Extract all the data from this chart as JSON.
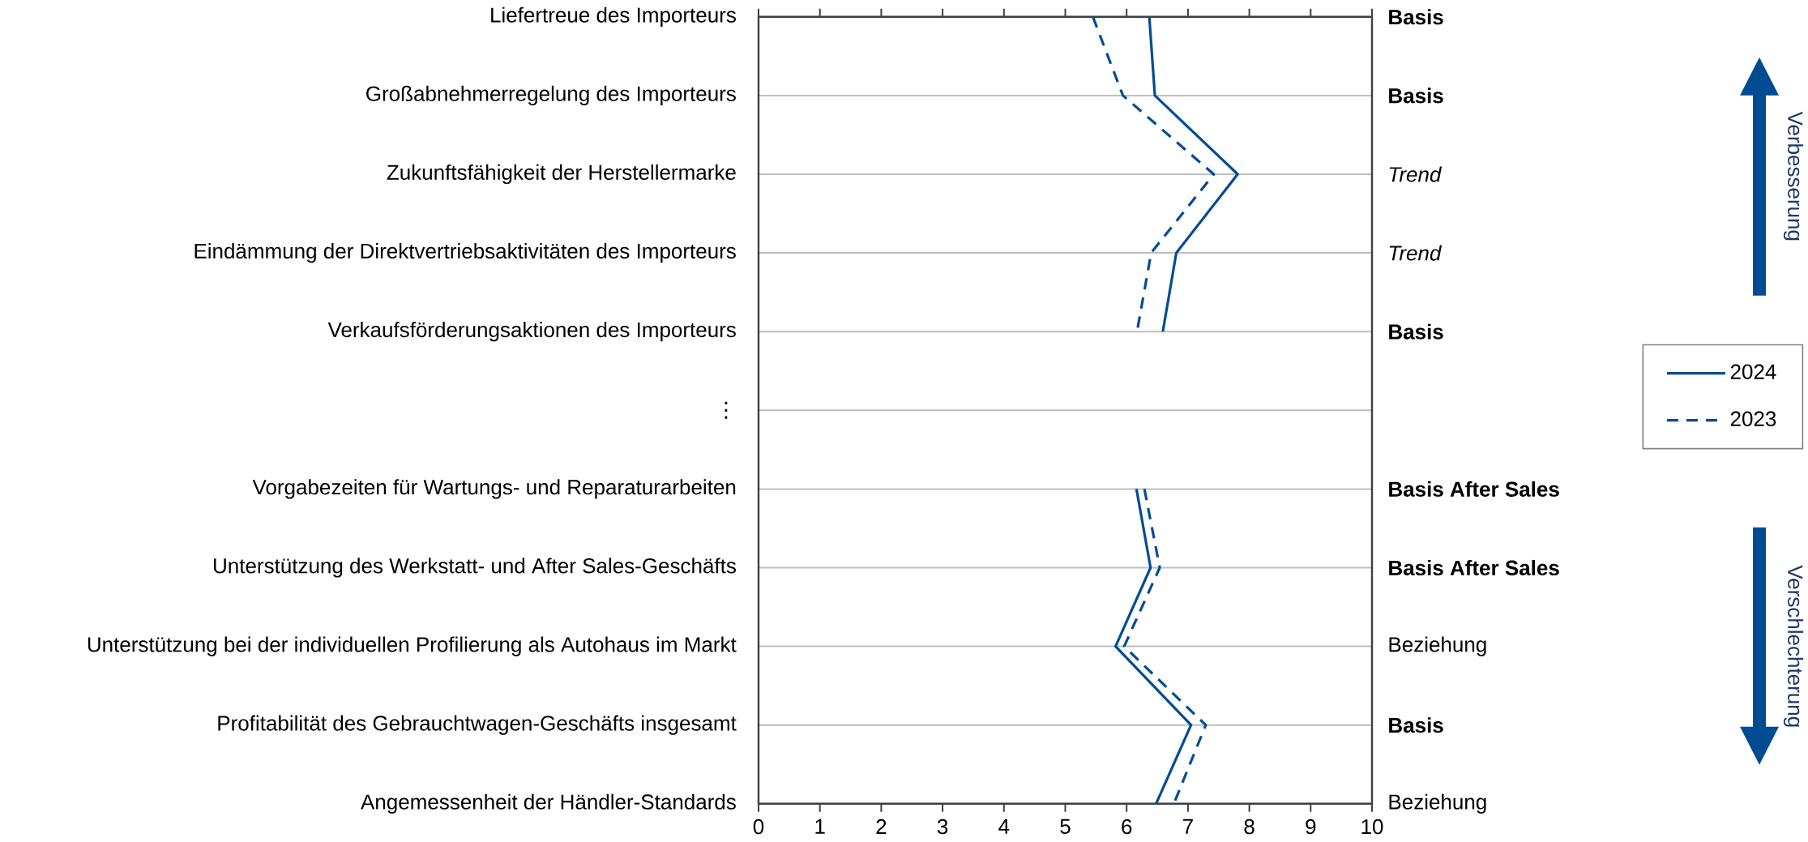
{
  "chart_data": {
    "type": "line",
    "orientation": "horizontal",
    "categories": [
      "Liefertreue des Importeurs",
      "Großabnehmerregelung des Importeurs",
      "Zukunftsfähigkeit der Herstellermarke",
      "Eindämmung der Direktvertriebsaktivitäten des Importeurs",
      "Verkaufsförderungsaktionen des Importeurs",
      "⋮",
      "Vorgabezeiten für Wartungs- und Reparaturarbeiten",
      "Unterstützung des Werkstatt- und After Sales-Geschäfts",
      "Unterstützung bei der individuellen Profilierung als Autohaus im Markt",
      "Profitabilität des Gebrauchtwagen-Geschäfts insgesamt",
      "Angemessenheit der Händler-Standards"
    ],
    "y2_categories": [
      "**Basis**",
      "**Basis**",
      "*Trend*",
      "*Trend*",
      "**Basis**",
      null,
      "**Basis After Sales**",
      "**Basis After Sales**",
      "Beziehung",
      "**Basis**",
      "Beziehung"
    ],
    "series": [
      {
        "name": "2024",
        "color": "#004c93",
        "line_style": "solid",
        "values": [
          6.37,
          6.46,
          7.81,
          6.81,
          6.59,
          null,
          6.16,
          6.39,
          5.82,
          7.05,
          6.48
        ]
      },
      {
        "name": "2023",
        "color": "#004c93",
        "line_style": "dashed",
        "values": [
          5.45,
          5.94,
          7.42,
          6.4,
          6.17,
          null,
          6.29,
          6.54,
          5.96,
          7.29,
          6.77
        ]
      }
    ],
    "xlim": [
      0,
      10
    ],
    "xticks": [
      0,
      1,
      2,
      3,
      4,
      5,
      6,
      7,
      8,
      9,
      10
    ],
    "grid": "y",
    "legend": "right",
    "annotations": [
      "Verbesserung",
      "Verschlechterung"
    ]
  }
}
